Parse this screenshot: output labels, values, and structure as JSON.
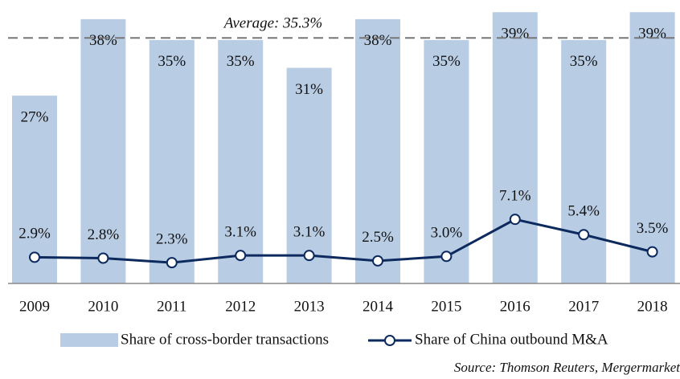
{
  "chart_data": {
    "type": "bar_line",
    "categories": [
      "2009",
      "2010",
      "2011",
      "2012",
      "2013",
      "2014",
      "2015",
      "2016",
      "2017",
      "2018"
    ],
    "series": [
      {
        "name": "Share of cross-border transactions",
        "color": "#b8cce4",
        "type": "bar",
        "values": [
          27,
          38,
          35,
          35,
          31,
          38,
          35,
          39,
          35,
          39
        ],
        "value_labels": [
          "27%",
          "38%",
          "35%",
          "35%",
          "31%",
          "38%",
          "35%",
          "39%",
          "35%",
          "39%"
        ]
      },
      {
        "name": "Share of China outbound M&A",
        "color": "#0d2a5e",
        "type": "line",
        "axis": "y2",
        "values": [
          2.9,
          2.8,
          2.3,
          3.1,
          3.1,
          2.5,
          3.0,
          7.1,
          5.4,
          3.5
        ],
        "value_labels": [
          "2.9%",
          "2.8%",
          "2.3%",
          "3.1%",
          "3.1%",
          "2.5%",
          "3.0%",
          "7.1%",
          "5.4%",
          "3.5%"
        ]
      }
    ],
    "average": {
      "value": 35.3,
      "label": "Average: 35.3%"
    },
    "ylim": [
      0,
      39.6
    ],
    "y2lim": [
      0,
      30.5
    ],
    "source": "Source: Thomson Reuters, Mergermarket"
  }
}
